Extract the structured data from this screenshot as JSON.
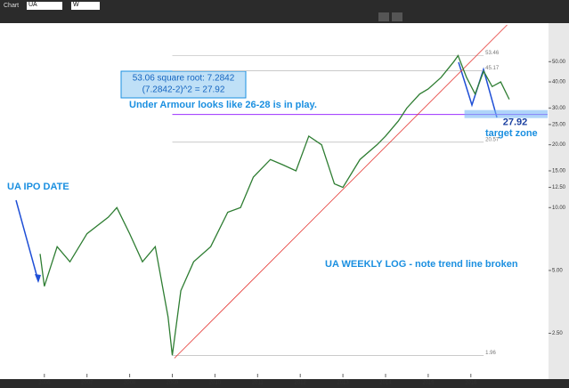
{
  "app": {
    "title": "Chart",
    "symbol": "UA",
    "interval": "W"
  },
  "chart_data": {
    "type": "line",
    "log": true,
    "x": [
      2005.9,
      2006.0,
      2006.3,
      2006.6,
      2007.0,
      2007.5,
      2007.7,
      2008.0,
      2008.3,
      2008.6,
      2008.9,
      2009.0,
      2009.2,
      2009.5,
      2009.9,
      2010.3,
      2010.6,
      2010.9,
      2011.3,
      2011.6,
      2011.9,
      2012.2,
      2012.5,
      2012.8,
      2013.0,
      2013.4,
      2013.8,
      2014.0,
      2014.3,
      2014.5,
      2014.8,
      2015.0,
      2015.3,
      2015.6,
      2015.7,
      2015.9,
      2016.1,
      2016.3,
      2016.5,
      2016.7,
      2016.9
    ],
    "series": [
      {
        "name": "UA",
        "color": "#2e7d32",
        "values": [
          6.0,
          4.2,
          6.5,
          5.5,
          7.5,
          9.0,
          10.0,
          7.5,
          5.5,
          6.5,
          3.0,
          1.96,
          4.0,
          5.5,
          6.5,
          9.5,
          10.0,
          14.0,
          17.0,
          16.0,
          15.0,
          22.0,
          20.0,
          13.0,
          12.5,
          17.0,
          20.0,
          22.0,
          26.0,
          30.0,
          35.0,
          37.0,
          42.0,
          50.0,
          53.46,
          42.0,
          35.0,
          45.0,
          38.0,
          40.0,
          33.0
        ]
      }
    ],
    "xlim": [
      2004.96,
      2017.8
    ],
    "ylim": [
      1.6,
      75
    ],
    "xticks": [
      2006,
      2007,
      2008,
      2009,
      2010,
      2011,
      2012,
      2013,
      2014,
      2015,
      2016
    ],
    "yticks": [
      {
        "value": 50,
        "label": "50.00"
      },
      {
        "value": 40,
        "label": "40.00"
      },
      {
        "value": 30,
        "label": "30.00"
      },
      {
        "value": 25,
        "label": "25.00"
      },
      {
        "value": 20,
        "label": "20.00"
      },
      {
        "value": 15,
        "label": "15.00"
      },
      {
        "value": 12.5,
        "label": "12.50"
      },
      {
        "value": 10,
        "label": "10.00"
      },
      {
        "value": 5,
        "label": "5.00"
      },
      {
        "value": 2.5,
        "label": "2.50"
      }
    ],
    "levels": [
      53.46,
      45.17,
      20.57,
      1.96
    ],
    "target": 27.92,
    "trend_line": {
      "x": [
        2009.05,
        2016.85
      ],
      "values": [
        1.9,
        75
      ]
    },
    "annotations": [
      "53.06 square root: 7.2842",
      "(7.2842-2)^2 = 27.92",
      "Under Armour looks like 26-28 is in play.",
      "UA IPO DATE",
      "UA WEEKLY LOG - note trend line broken",
      "target zone"
    ]
  }
}
